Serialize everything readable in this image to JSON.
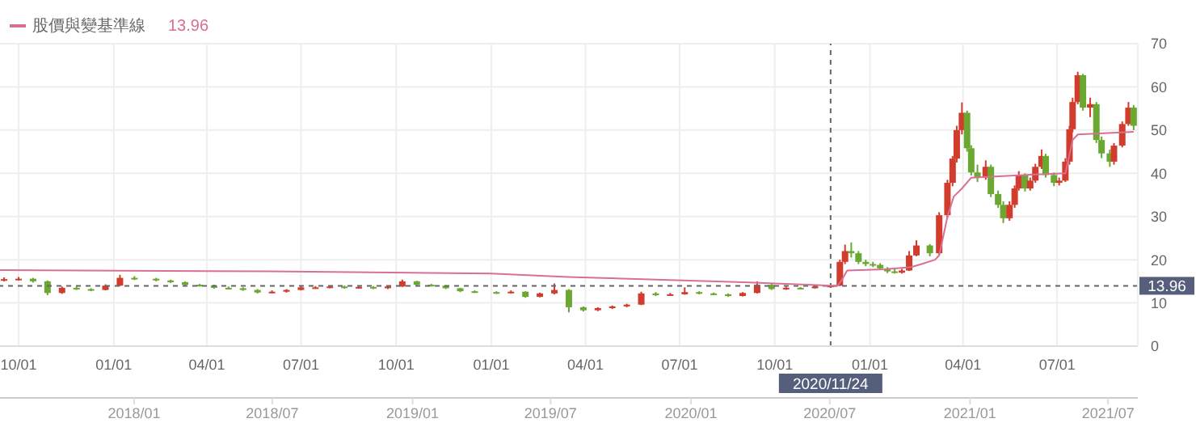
{
  "chart_data": {
    "type": "candlestick",
    "x": [
      "2018-09-17",
      "2018-10-01",
      "2018-10-15",
      "2018-10-29",
      "2018-11-12",
      "2018-11-26",
      "2018-12-10",
      "2018-12-24",
      "2019-01-07",
      "2019-01-21",
      "2019-02-11",
      "2019-02-25",
      "2019-03-11",
      "2019-03-25",
      "2019-04-08",
      "2019-04-22",
      "2019-05-06",
      "2019-05-20",
      "2019-06-03",
      "2019-06-17",
      "2019-07-01",
      "2019-07-15",
      "2019-07-29",
      "2019-08-12",
      "2019-08-26",
      "2019-09-09",
      "2019-09-23",
      "2019-10-07",
      "2019-10-21",
      "2019-11-04",
      "2019-11-18",
      "2019-12-02",
      "2019-12-16",
      "2020-01-06",
      "2020-01-20",
      "2020-02-03",
      "2020-02-17",
      "2020-03-02",
      "2020-03-16",
      "2020-03-30",
      "2020-04-13",
      "2020-04-27",
      "2020-05-11",
      "2020-05-25",
      "2020-06-08",
      "2020-06-22",
      "2020-07-06",
      "2020-07-20",
      "2020-08-03",
      "2020-08-17",
      "2020-08-31",
      "2020-09-14",
      "2020-09-28",
      "2020-10-12",
      "2020-10-26",
      "2020-11-09",
      "2020-11-24",
      "2020-12-03",
      "2020-12-08",
      "2020-12-14",
      "2020-12-21",
      "2020-12-28",
      "2021-01-04",
      "2021-01-11",
      "2021-01-18",
      "2021-01-25",
      "2021-02-01",
      "2021-02-08",
      "2021-02-15",
      "2021-02-28",
      "2021-03-09",
      "2021-03-17",
      "2021-03-22",
      "2021-03-26",
      "2021-03-31",
      "2021-04-05",
      "2021-04-09",
      "2021-04-15",
      "2021-04-23",
      "2021-04-28",
      "2021-05-05",
      "2021-05-10",
      "2021-05-16",
      "2021-05-21",
      "2021-05-25",
      "2021-05-31",
      "2021-06-05",
      "2021-06-10",
      "2021-06-16",
      "2021-06-20",
      "2021-06-28",
      "2021-07-03",
      "2021-07-09",
      "2021-07-13",
      "2021-07-16",
      "2021-07-21",
      "2021-07-26",
      "2021-08-02",
      "2021-08-08",
      "2021-08-13",
      "2021-08-21",
      "2021-08-25",
      "2021-09-02",
      "2021-09-08",
      "2021-09-13"
    ],
    "ohlc": [
      [
        15.3,
        15.9,
        15.0,
        15.5
      ],
      [
        15.5,
        16.0,
        15.2,
        15.6
      ],
      [
        15.6,
        15.8,
        14.7,
        15.0
      ],
      [
        15.0,
        15.2,
        11.8,
        12.3
      ],
      [
        12.3,
        13.8,
        12.1,
        13.5
      ],
      [
        13.5,
        13.8,
        13.0,
        13.2
      ],
      [
        13.2,
        13.4,
        12.7,
        13.0
      ],
      [
        13.0,
        14.3,
        12.9,
        14.0
      ],
      [
        14.0,
        16.5,
        13.9,
        15.8
      ],
      [
        15.8,
        16.2,
        15.3,
        15.6
      ],
      [
        15.6,
        15.8,
        15.0,
        15.2
      ],
      [
        15.2,
        15.4,
        14.6,
        14.8
      ],
      [
        14.8,
        15.0,
        14.0,
        14.2
      ],
      [
        14.2,
        14.4,
        13.8,
        14.0
      ],
      [
        14.0,
        14.2,
        13.3,
        13.5
      ],
      [
        13.5,
        13.8,
        13.2,
        13.4
      ],
      [
        13.4,
        13.6,
        12.8,
        13.0
      ],
      [
        13.0,
        13.2,
        12.2,
        12.4
      ],
      [
        12.4,
        12.9,
        12.2,
        12.6
      ],
      [
        12.6,
        13.2,
        12.4,
        13.0
      ],
      [
        13.0,
        13.9,
        12.9,
        13.6
      ],
      [
        13.6,
        13.9,
        13.3,
        13.6
      ],
      [
        13.6,
        14.0,
        13.4,
        13.8
      ],
      [
        13.8,
        14.0,
        13.3,
        13.5
      ],
      [
        13.5,
        13.9,
        13.3,
        13.7
      ],
      [
        13.7,
        13.9,
        13.2,
        13.4
      ],
      [
        13.4,
        14.0,
        13.2,
        13.8
      ],
      [
        13.8,
        15.4,
        13.7,
        15.0
      ],
      [
        15.0,
        15.1,
        14.0,
        14.2
      ],
      [
        14.2,
        14.4,
        13.8,
        14.0
      ],
      [
        14.0,
        14.1,
        13.2,
        13.4
      ],
      [
        13.4,
        13.5,
        12.5,
        12.7
      ],
      [
        12.7,
        12.9,
        12.3,
        12.5
      ],
      [
        12.5,
        12.7,
        12.1,
        12.3
      ],
      [
        12.3,
        12.9,
        12.2,
        12.6
      ],
      [
        12.6,
        12.7,
        11.2,
        11.4
      ],
      [
        11.4,
        12.4,
        11.3,
        12.2
      ],
      [
        12.2,
        14.5,
        12.0,
        13.0
      ],
      [
        13.0,
        13.2,
        7.8,
        9.0
      ],
      [
        9.0,
        9.2,
        8.0,
        8.3
      ],
      [
        8.3,
        9.0,
        8.1,
        8.8
      ],
      [
        8.8,
        9.4,
        8.6,
        9.2
      ],
      [
        9.2,
        9.8,
        9.0,
        9.6
      ],
      [
        9.6,
        12.6,
        9.5,
        12.2
      ],
      [
        12.2,
        12.5,
        11.6,
        11.8
      ],
      [
        11.8,
        12.3,
        11.6,
        12.0
      ],
      [
        12.0,
        13.6,
        11.9,
        12.5
      ],
      [
        12.5,
        12.7,
        12.0,
        12.2
      ],
      [
        12.2,
        12.4,
        11.8,
        12.0
      ],
      [
        12.0,
        12.2,
        11.4,
        11.6
      ],
      [
        11.6,
        12.5,
        11.5,
        12.3
      ],
      [
        12.3,
        15.0,
        12.2,
        14.2
      ],
      [
        14.2,
        14.4,
        13.0,
        13.2
      ],
      [
        13.2,
        13.8,
        13.0,
        13.5
      ],
      [
        13.5,
        13.7,
        13.2,
        13.4
      ],
      [
        13.4,
        14.0,
        13.3,
        13.8
      ],
      [
        13.8,
        14.2,
        13.6,
        14.0
      ],
      [
        14.0,
        20.0,
        13.9,
        19.5
      ],
      [
        19.5,
        23.5,
        19.0,
        22.0
      ],
      [
        22.0,
        24.0,
        20.5,
        21.5
      ],
      [
        21.5,
        22.0,
        19.0,
        19.5
      ],
      [
        19.5,
        20.0,
        18.5,
        19.0
      ],
      [
        19.0,
        19.5,
        18.3,
        18.8
      ],
      [
        18.8,
        19.2,
        17.6,
        18.0
      ],
      [
        18.0,
        18.3,
        16.9,
        17.3
      ],
      [
        17.3,
        17.8,
        16.8,
        17.0
      ],
      [
        17.0,
        17.9,
        16.8,
        17.5
      ],
      [
        17.5,
        22.0,
        17.4,
        21.0
      ],
      [
        21.0,
        24.5,
        20.8,
        23.3
      ],
      [
        23.3,
        23.6,
        20.8,
        21.5
      ],
      [
        21.5,
        31.0,
        21.2,
        30.3
      ],
      [
        30.3,
        38.5,
        29.8,
        37.8
      ],
      [
        37.8,
        44.0,
        37.0,
        43.4
      ],
      [
        43.4,
        51.0,
        42.5,
        50.0
      ],
      [
        50.0,
        56.4,
        49.0,
        54.0
      ],
      [
        54.0,
        54.5,
        45.0,
        45.8
      ],
      [
        45.8,
        46.5,
        39.5,
        40.2
      ],
      [
        40.2,
        42.0,
        38.0,
        39.0
      ],
      [
        39.0,
        43.0,
        38.5,
        41.5
      ],
      [
        41.5,
        42.0,
        34.5,
        35.2
      ],
      [
        35.2,
        36.0,
        32.0,
        32.7
      ],
      [
        32.7,
        33.5,
        28.5,
        29.6
      ],
      [
        29.6,
        33.5,
        29.0,
        32.7
      ],
      [
        32.7,
        37.2,
        32.0,
        36.5
      ],
      [
        36.5,
        40.5,
        36.0,
        39.6
      ],
      [
        39.6,
        40.0,
        35.8,
        36.5
      ],
      [
        36.5,
        39.0,
        36.0,
        38.3
      ],
      [
        38.3,
        42.2,
        37.8,
        41.5
      ],
      [
        41.5,
        45.5,
        41.0,
        44.0
      ],
      [
        44.0,
        44.5,
        39.0,
        39.6
      ],
      [
        39.6,
        40.2,
        37.0,
        37.8
      ],
      [
        37.8,
        39.0,
        37.2,
        38.3
      ],
      [
        38.3,
        43.5,
        38.0,
        42.7
      ],
      [
        42.7,
        51.0,
        42.0,
        50.2
      ],
      [
        50.2,
        57.5,
        49.5,
        56.5
      ],
      [
        56.5,
        63.5,
        56.0,
        62.7
      ],
      [
        62.7,
        63.0,
        54.5,
        55.2
      ],
      [
        55.2,
        57.5,
        53.0,
        56.0
      ],
      [
        56.0,
        56.5,
        47.0,
        47.7
      ],
      [
        47.7,
        48.5,
        43.5,
        44.6
      ],
      [
        44.6,
        45.5,
        41.5,
        42.7
      ],
      [
        42.7,
        47.0,
        42.0,
        46.4
      ],
      [
        46.4,
        52.0,
        46.0,
        51.4
      ],
      [
        51.4,
        56.5,
        51.0,
        55.2
      ],
      [
        55.2,
        55.8,
        50.0,
        51.0
      ]
    ],
    "series": [
      {
        "type": "line",
        "name": "股價與變基準線",
        "color": "#d86f96",
        "x": [
          "2018-09-13",
          "2019-06-01",
          "2020-01-01",
          "2020-03-15",
          "2020-09-01",
          "2020-11-24",
          "2020-12-01",
          "2020-12-05",
          "2020-12-10",
          "2021-01-15",
          "2021-02-10",
          "2021-02-20",
          "2021-03-05",
          "2021-03-09",
          "2021-03-17",
          "2021-03-23",
          "2021-03-31",
          "2021-04-09",
          "2021-05-21",
          "2021-07-09",
          "2021-07-16",
          "2021-07-21",
          "2021-09-13"
        ],
        "values": [
          17.6,
          17.3,
          16.8,
          16.0,
          14.8,
          14.0,
          14.0,
          15.4,
          17.5,
          17.8,
          18.3,
          19.0,
          20.0,
          21.0,
          30.0,
          34.6,
          36.5,
          39.0,
          39.5,
          40.0,
          47.7,
          49.0,
          49.6
        ]
      }
    ],
    "annotations": [
      "13.96"
    ],
    "legend": "top left",
    "grid": true,
    "xlim": [
      "2018-09-13",
      "2021-09-17"
    ],
    "xticks": [
      {
        "value": "2018-10-01",
        "label": "10/01"
      },
      {
        "value": "2019-01-01",
        "label": "01/01"
      },
      {
        "value": "2019-04-01",
        "label": "04/01"
      },
      {
        "value": "2019-07-01",
        "label": "07/01"
      },
      {
        "value": "2019-10-01",
        "label": "10/01"
      },
      {
        "value": "2020-01-01",
        "label": "01/01"
      },
      {
        "value": "2020-04-01",
        "label": "04/01"
      },
      {
        "value": "2020-07-01",
        "label": "07/01"
      },
      {
        "value": "2020-10-01",
        "label": "10/01"
      },
      {
        "value": "2021-01-01",
        "label": "01/01"
      },
      {
        "value": "2021-04-01",
        "label": "04/01"
      },
      {
        "value": "2021-07-01",
        "label": "07/01"
      }
    ],
    "ylim": [
      0,
      70
    ],
    "yticks": [
      0,
      10,
      20,
      30,
      40,
      50,
      60,
      70
    ],
    "x2lim": [
      "2017-07-09",
      "2021-08-09"
    ],
    "x2ticks": [
      {
        "value": "2018-01-01",
        "label": "2018/01"
      },
      {
        "value": "2018-07-01",
        "label": "2018/07"
      },
      {
        "value": "2019-01-01",
        "label": "2019/01"
      },
      {
        "value": "2019-07-01",
        "label": "2019/07"
      },
      {
        "value": "2020-01-01",
        "label": "2020/01"
      },
      {
        "value": "2020-07-01",
        "label": "2020/07"
      },
      {
        "value": "2021-01-01",
        "label": "2021/01"
      },
      {
        "value": "2021-07-01",
        "label": "2021/07"
      }
    ],
    "ref_lines": [
      {
        "axis": "x",
        "value": "2020-11-24",
        "label": "2020/11/24",
        "color": "#666666",
        "line_style": "dashed"
      },
      {
        "axis": "y",
        "value": 13.96,
        "label": "13.96",
        "color": "#666666",
        "line_style": "dashed"
      }
    ]
  }
}
